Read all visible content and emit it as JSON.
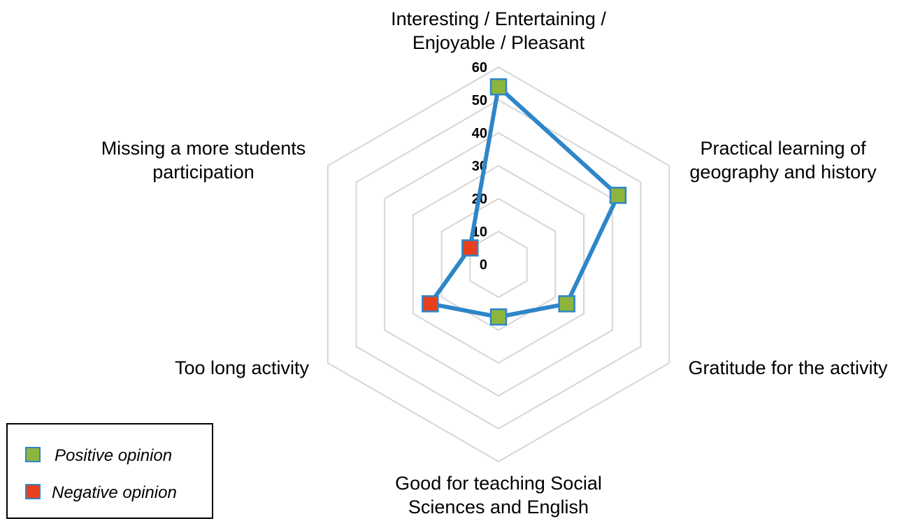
{
  "chart_data": {
    "type": "radar",
    "categories": [
      [
        "Interesting / Entertaining /",
        "Enjoyable / Pleasant"
      ],
      [
        "Practical learning of",
        "geography and history"
      ],
      [
        "Gratitude for the activity"
      ],
      [
        "Good for teaching Social",
        "Sciences and English"
      ],
      [
        "Too long activity"
      ],
      [
        "Missing a more students",
        "participation"
      ]
    ],
    "values": [
      54,
      42,
      24,
      16,
      24,
      10
    ],
    "point_types": [
      "positive",
      "positive",
      "positive",
      "positive",
      "negative",
      "negative"
    ],
    "rlim": [
      0,
      60
    ],
    "ticks": [
      "0",
      "10",
      "20",
      "30",
      "40",
      "50",
      "60"
    ],
    "grid": true,
    "legend_position": "bottom-left",
    "legend": [
      {
        "label": "Positive opinion",
        "type": "positive"
      },
      {
        "label": "Negative opinion",
        "type": "negative"
      }
    ],
    "colors": {
      "line": "#2E86C8",
      "positive_fill": "#8DB53C",
      "negative_fill": "#E8401F",
      "marker_border": "#2E86C8",
      "grid": "#D6D6D6"
    }
  }
}
